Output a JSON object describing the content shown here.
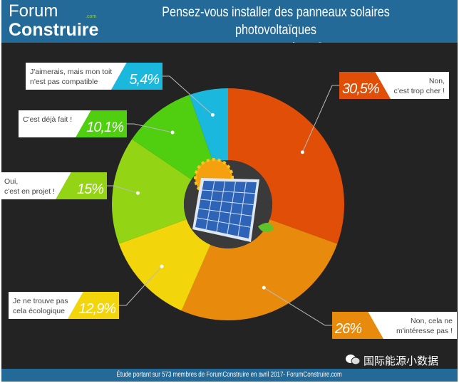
{
  "header": {
    "logo_line1": "Forum",
    "logo_line2": "Construire",
    "logo_suffix": ".com",
    "title_line1": "Pensez-vous installer des panneaux solaires photovoltaïques",
    "title_line2": "sur votre maison ?"
  },
  "footer": {
    "text": "Étude portant sur 573 membres de ForumConstruire en avril 2017- ForumConstruire.com"
  },
  "watermark": {
    "icon": "wechat-icon",
    "text": "国际能源小数据"
  },
  "chart_data": {
    "type": "pie",
    "variant": "donut",
    "title": "Pensez-vous installer des panneaux solaires photovoltaïques sur votre maison ?",
    "slices": [
      {
        "label": "Non, c'est trop cher !",
        "value": 30.5,
        "display": "30,5%",
        "color": "#e04e08"
      },
      {
        "label": "Non, cela ne m'intéresse pas !",
        "value": 26,
        "display": "26%",
        "color": "#e88a0c"
      },
      {
        "label": "Je ne trouve pas cela écologique",
        "value": 12.9,
        "display": "12,9%",
        "color": "#f2d50a"
      },
      {
        "label": "Oui, c'est en projet !",
        "value": 15,
        "display": "15%",
        "color": "#93d414"
      },
      {
        "label": "C'est déjà fait !",
        "value": 10.1,
        "display": "10,1%",
        "color": "#4fcf10"
      },
      {
        "label": "J'aimerais, mais mon toit n'est pas compatible",
        "value": 5.4,
        "display": "5,4%",
        "color": "#1ab8dc"
      }
    ],
    "center_icon": "solar-panel-sun-icon"
  }
}
